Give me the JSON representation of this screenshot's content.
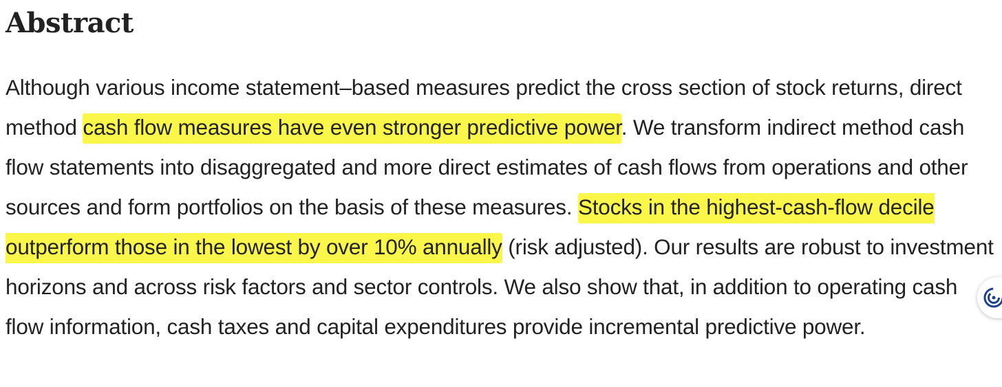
{
  "abstract": {
    "heading": "Abstract",
    "segments": [
      {
        "text": "Although various income statement–based measures predict the cross section of stock returns, direct method ",
        "highlight": false
      },
      {
        "text": "cash flow measures have even stronger predictive power",
        "highlight": true
      },
      {
        "text": ". We transform indirect method cash flow statements into disaggregated and more direct estimates of cash flows from operations and other sources and form portfolios on the basis of these measures. ",
        "highlight": false
      },
      {
        "text": "Stocks in the highest-cash-flow decile outperform those in the lowest by over 10% annually",
        "highlight": true
      },
      {
        "text": " (risk adjusted). Our results are robust to investment horizons and across risk factors and sector controls. We also show that, in addition to operating cash flow information, cash taxes and capital expenditures provide incremental predictive power.",
        "highlight": false
      }
    ]
  },
  "colors": {
    "text": "#222222",
    "highlight": "#fbf74a",
    "widget_accent": "#1f3f8f"
  },
  "widget": {
    "icon": "assistant-spiral-icon"
  }
}
